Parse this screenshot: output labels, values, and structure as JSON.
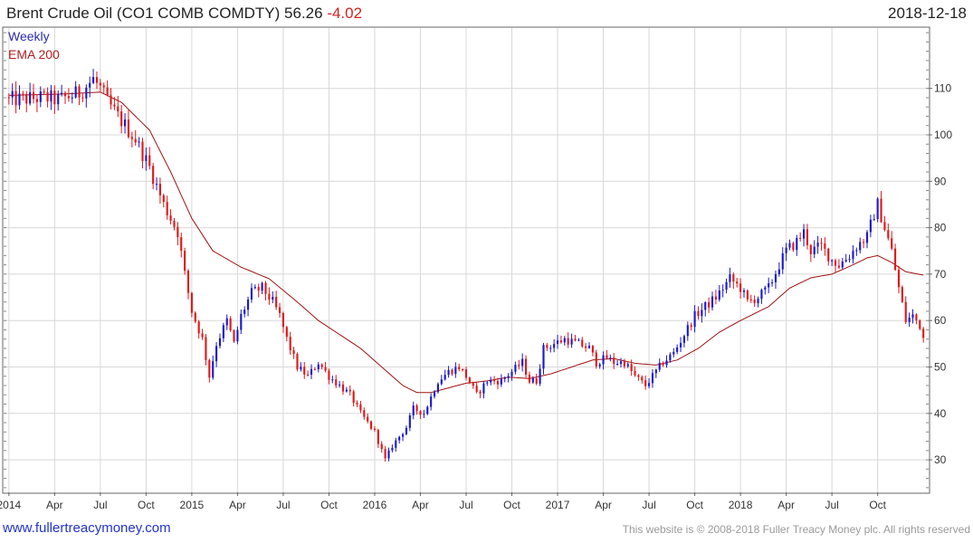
{
  "header": {
    "title": "Brent Crude Oil",
    "symbol": "(CO1 COMB COMDTY)",
    "last": "56.26",
    "change": "-4.02",
    "date": "2018-12-18"
  },
  "footer": {
    "site": "www.fullertreacymoney.com",
    "copyright": "This website is © 2008-2018 Fuller Treacy Money plc. All rights reserved"
  },
  "colors": {
    "up": "#1a1acc",
    "down": "#e01818",
    "ema": "#a01010",
    "grid": "#d8d8d8",
    "frame": "#666666"
  },
  "chart_data": {
    "type": "candlestick",
    "interval": "Weekly",
    "ylim": [
      23,
      123
    ],
    "yticks": [
      30,
      40,
      50,
      60,
      70,
      80,
      90,
      100,
      110
    ],
    "xticks": [
      {
        "label": "2014",
        "week": 0
      },
      {
        "label": "Apr",
        "week": 13
      },
      {
        "label": "Jul",
        "week": 26
      },
      {
        "label": "Oct",
        "week": 39
      },
      {
        "label": "2015",
        "week": 52
      },
      {
        "label": "Apr",
        "week": 65
      },
      {
        "label": "Jul",
        "week": 78
      },
      {
        "label": "Oct",
        "week": 91
      },
      {
        "label": "2016",
        "week": 104
      },
      {
        "label": "Apr",
        "week": 117
      },
      {
        "label": "Jul",
        "week": 130
      },
      {
        "label": "Oct",
        "week": 143
      },
      {
        "label": "2017",
        "week": 156
      },
      {
        "label": "Apr",
        "week": 169
      },
      {
        "label": "Jul",
        "week": 182
      },
      {
        "label": "Oct",
        "week": 195
      },
      {
        "label": "2018",
        "week": 208
      },
      {
        "label": "Apr",
        "week": 221
      },
      {
        "label": "Jul",
        "week": 234
      },
      {
        "label": "Oct",
        "week": 247
      }
    ],
    "xlim": [
      -1.5,
      261.5
    ],
    "grid": true,
    "legend": {
      "placement": "top-left",
      "items": [
        "Weekly",
        "EMA 200"
      ]
    },
    "close_keypoints": [
      [
        0,
        107.5
      ],
      [
        10,
        108
      ],
      [
        14,
        107.5
      ],
      [
        20,
        109
      ],
      [
        24,
        112
      ],
      [
        26,
        110
      ],
      [
        28,
        107
      ],
      [
        32,
        103
      ],
      [
        36,
        99
      ],
      [
        40,
        93
      ],
      [
        44,
        85
      ],
      [
        48,
        79
      ],
      [
        50,
        70
      ],
      [
        52,
        62
      ],
      [
        55,
        56
      ],
      [
        57,
        48
      ],
      [
        59,
        55
      ],
      [
        62,
        60
      ],
      [
        64,
        55
      ],
      [
        66,
        61
      ],
      [
        69,
        66
      ],
      [
        72,
        67
      ],
      [
        75,
        64
      ],
      [
        77,
        61
      ],
      [
        79,
        56
      ],
      [
        82,
        50
      ],
      [
        85,
        48
      ],
      [
        88,
        51
      ],
      [
        91,
        48
      ],
      [
        94,
        46
      ],
      [
        97,
        44
      ],
      [
        100,
        40
      ],
      [
        104,
        36
      ],
      [
        107,
        30
      ],
      [
        109,
        33
      ],
      [
        113,
        37
      ],
      [
        115,
        41
      ],
      [
        118,
        40
      ],
      [
        122,
        47
      ],
      [
        125,
        49
      ],
      [
        128,
        50
      ],
      [
        130,
        48
      ],
      [
        133,
        44
      ],
      [
        136,
        47
      ],
      [
        140,
        47
      ],
      [
        143,
        49
      ],
      [
        146,
        51
      ],
      [
        148,
        47
      ],
      [
        150,
        47
      ],
      [
        152,
        54
      ],
      [
        155,
        55
      ],
      [
        158,
        56
      ],
      [
        162,
        55
      ],
      [
        165,
        54
      ],
      [
        167,
        51
      ],
      [
        170,
        52
      ],
      [
        172,
        51
      ],
      [
        175,
        51
      ],
      [
        178,
        48
      ],
      [
        181,
        46
      ],
      [
        183,
        48
      ],
      [
        186,
        51
      ],
      [
        189,
        53
      ],
      [
        192,
        57
      ],
      [
        195,
        61
      ],
      [
        198,
        63
      ],
      [
        201,
        65
      ],
      [
        205,
        69
      ],
      [
        208,
        67
      ],
      [
        210,
        64
      ],
      [
        213,
        65
      ],
      [
        216,
        67
      ],
      [
        219,
        72
      ],
      [
        221,
        75
      ],
      [
        224,
        77
      ],
      [
        226,
        79
      ],
      [
        228,
        75
      ],
      [
        231,
        76
      ],
      [
        234,
        73
      ],
      [
        236,
        72
      ],
      [
        239,
        74
      ],
      [
        241,
        76
      ],
      [
        244,
        78
      ],
      [
        246,
        83
      ],
      [
        247,
        85
      ],
      [
        249,
        80
      ],
      [
        251,
        75
      ],
      [
        253,
        67
      ],
      [
        255,
        60
      ],
      [
        257,
        61
      ],
      [
        259,
        59
      ],
      [
        260,
        56
      ]
    ],
    "ema_keypoints": [
      [
        0,
        108.5
      ],
      [
        16,
        108.8
      ],
      [
        26,
        109.2
      ],
      [
        32,
        107
      ],
      [
        40,
        101
      ],
      [
        46,
        92
      ],
      [
        52,
        82
      ],
      [
        58,
        75
      ],
      [
        66,
        71.5
      ],
      [
        74,
        69
      ],
      [
        82,
        64
      ],
      [
        88,
        60
      ],
      [
        94,
        57
      ],
      [
        100,
        54
      ],
      [
        106,
        50
      ],
      [
        112,
        46
      ],
      [
        116,
        44.5
      ],
      [
        120,
        44.5
      ],
      [
        125,
        45.5
      ],
      [
        130,
        46.5
      ],
      [
        136,
        47
      ],
      [
        142,
        47.8
      ],
      [
        148,
        47.5
      ],
      [
        154,
        48.5
      ],
      [
        160,
        50
      ],
      [
        166,
        51.5
      ],
      [
        172,
        51.8
      ],
      [
        178,
        50.8
      ],
      [
        184,
        50.4
      ],
      [
        190,
        51.5
      ],
      [
        196,
        54
      ],
      [
        202,
        57.5
      ],
      [
        208,
        60
      ],
      [
        216,
        63
      ],
      [
        222,
        67
      ],
      [
        228,
        69.2
      ],
      [
        234,
        70
      ],
      [
        240,
        72
      ],
      [
        244,
        73.5
      ],
      [
        247,
        74
      ],
      [
        251,
        72.5
      ],
      [
        255,
        70.5
      ],
      [
        260,
        69.8
      ]
    ],
    "last_close": 56.26
  }
}
